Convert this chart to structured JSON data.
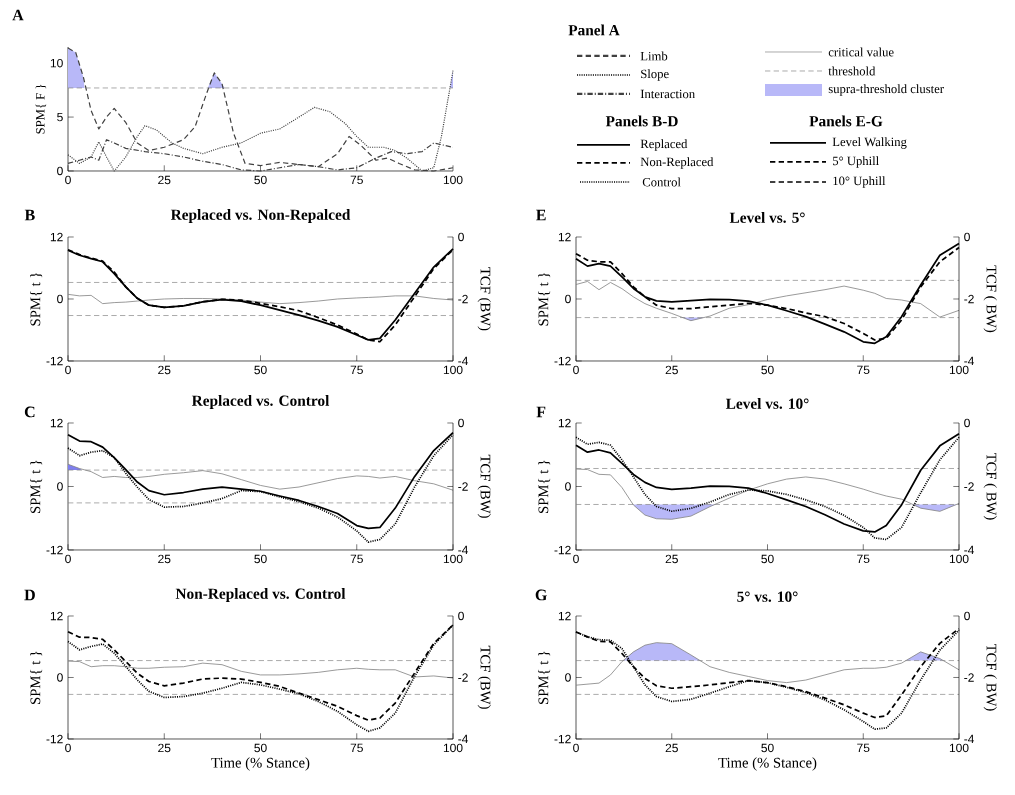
{
  "chart_data": [
    {
      "type": "line",
      "annotations": [
        "A"
      ],
      "ylabel": "SPM{ F }",
      "xlim": [
        0,
        100
      ],
      "xticks": [
        0,
        25,
        50,
        75,
        100
      ],
      "ylim": [
        0,
        11.5
      ],
      "yticks": [
        0,
        5,
        10
      ],
      "ref_lines": [
        {
          "axis": "y",
          "value": 7.7,
          "color": "#808080",
          "line_style": "dashed"
        }
      ],
      "series": [
        {
          "type": "area",
          "color": "#b8b8f8",
          "x": [
            0,
            2,
            4,
            4.3
          ],
          "values": [
            11.4,
            11.0,
            8.7,
            7.7
          ]
        },
        {
          "type": "area",
          "color": "#b8b8f8",
          "x": [
            36.3,
            38,
            40,
            40.6
          ],
          "values": [
            7.7,
            9.1,
            8.1,
            7.7
          ]
        },
        {
          "type": "area",
          "color": "#b8b8f8",
          "x": [
            99.2,
            100
          ],
          "values": [
            7.7,
            9.3
          ]
        },
        {
          "color": "#404040",
          "line_style": "dashed",
          "x": [
            0,
            2,
            4,
            6,
            8,
            10,
            12,
            15,
            18,
            21,
            25,
            30,
            33,
            36,
            38,
            40,
            43,
            46,
            50,
            55,
            60,
            65,
            70,
            73,
            76,
            80,
            83,
            86,
            90,
            95,
            100
          ],
          "values": [
            11.4,
            11.0,
            8.7,
            5.6,
            3.9,
            5.0,
            5.8,
            4.5,
            2.6,
            1.9,
            2.2,
            2.9,
            4.1,
            7.2,
            9.1,
            8.1,
            3.5,
            0.7,
            0.5,
            0.8,
            0.6,
            0.4,
            1.6,
            3.2,
            2.4,
            1.0,
            1.2,
            0.7,
            0.1,
            0,
            0.3
          ]
        },
        {
          "color": "#404040",
          "line_style": "dotted",
          "x": [
            0,
            3,
            6,
            8,
            10,
            12,
            15,
            18,
            20,
            23,
            27,
            30,
            35,
            40,
            45,
            50,
            55,
            60,
            64,
            68,
            72,
            75,
            78,
            82,
            85,
            88,
            92,
            95,
            97,
            100
          ],
          "values": [
            1.5,
            0.7,
            1.3,
            2.7,
            1.3,
            0,
            1.3,
            3.2,
            4.2,
            3.8,
            2.6,
            2.1,
            1.6,
            2.2,
            2.6,
            3.5,
            3.9,
            5.0,
            5.9,
            5.5,
            4.4,
            3.2,
            2.2,
            2.2,
            1.9,
            1.2,
            0,
            0.3,
            3.2,
            9.3
          ]
        },
        {
          "color": "#404040",
          "line_style": "dashdot",
          "x": [
            0,
            3,
            6,
            8,
            10,
            12,
            15,
            20,
            25,
            30,
            35,
            40,
            45,
            50,
            55,
            60,
            65,
            70,
            75,
            80,
            84,
            88,
            92,
            95,
            100
          ],
          "values": [
            0.7,
            1.0,
            1.3,
            1.0,
            2.9,
            2.6,
            2.1,
            1.8,
            1.6,
            1.3,
            0.9,
            0.6,
            0.1,
            0,
            0.3,
            0.6,
            0.4,
            0.1,
            0.3,
            1.2,
            1.8,
            1.6,
            1.8,
            2.6,
            2.2
          ]
        }
      ]
    },
    {
      "type": "other",
      "annotations": [
        "Panel A",
        "Panels B-D",
        "Panels E-G"
      ],
      "series": [
        {
          "name": "Limb",
          "color": "#404040",
          "line_style": "dashed"
        },
        {
          "name": "Slope",
          "color": "#404040",
          "line_style": "dotted"
        },
        {
          "name": "Interaction",
          "color": "#404040",
          "line_style": "dashdot"
        },
        {
          "name": "critical value",
          "color": "#808080",
          "line_style": "solid"
        },
        {
          "name": "threshold",
          "color": "#808080",
          "line_style": "dashed"
        },
        {
          "name": "supra-threshold cluster",
          "color": "#b8b8f8",
          "type": "area"
        },
        {
          "name": "Replaced",
          "color": "#000000",
          "line_style": "solid"
        },
        {
          "name": "Non-Replaced",
          "color": "#000000",
          "line_style": "dashed"
        },
        {
          "name": "Control",
          "color": "#000000",
          "line_style": "dotted"
        },
        {
          "name": "Level Walking",
          "color": "#000000",
          "line_style": "solid"
        },
        {
          "name": "5° Uphill",
          "color": "#000000",
          "line_style": "dashed"
        },
        {
          "name": "10° Uphill",
          "color": "#404040",
          "line_style": "dashed"
        }
      ]
    },
    {
      "type": "line",
      "title": "Replaced vs. Non-Repalced",
      "annotations": [
        "B"
      ],
      "ylabel": "SPM{ t }",
      "y2label": "TCF (BW)",
      "xlim": [
        0,
        100
      ],
      "xticks": [
        0,
        25,
        50,
        75,
        100
      ],
      "ylim": [
        -12,
        12
      ],
      "yticks": [
        -12,
        0,
        12
      ],
      "y2lim": [
        -4,
        0
      ],
      "y2ticks": [
        -4,
        -2,
        0
      ],
      "x": [
        0,
        3,
        6,
        9,
        12,
        15,
        18,
        21,
        25,
        30,
        35,
        40,
        45,
        50,
        55,
        60,
        65,
        70,
        75,
        78,
        81,
        85,
        90,
        95,
        100
      ],
      "ref_lines": [
        {
          "axis": "y",
          "value": 3.2,
          "color": "#808080",
          "line_style": "dashed"
        },
        {
          "axis": "y",
          "value": -3.2,
          "color": "#808080",
          "line_style": "dashed"
        }
      ],
      "series": [
        {
          "color": "#808080",
          "line_style": "solid",
          "values": [
            0.9,
            0.6,
            0.7,
            -0.9,
            -0.7,
            -0.6,
            -0.4,
            -0.2,
            0,
            0.1,
            0.1,
            0,
            -0.2,
            -0.6,
            -0.9,
            -0.7,
            -0.4,
            0,
            0.2,
            0.3,
            0.4,
            0.6,
            0.6,
            0.1,
            -0.2
          ]
        },
        {
          "color": "#000000",
          "line_style": "solid",
          "axis": "y2",
          "values": [
            -0.43,
            -0.59,
            -0.7,
            -0.8,
            -1.18,
            -1.61,
            -1.98,
            -2.2,
            -2.27,
            -2.22,
            -2.09,
            -2.02,
            -2.07,
            -2.2,
            -2.36,
            -2.52,
            -2.7,
            -2.9,
            -3.16,
            -3.32,
            -3.27,
            -2.68,
            -1.82,
            -0.97,
            -0.38
          ]
        },
        {
          "color": "#000000",
          "line_style": "dashed",
          "axis": "y2",
          "values": [
            -0.41,
            -0.57,
            -0.68,
            -0.78,
            -1.13,
            -1.61,
            -1.98,
            -2.2,
            -2.27,
            -2.22,
            -2.09,
            -2.01,
            -2.04,
            -2.14,
            -2.25,
            -2.38,
            -2.6,
            -2.84,
            -3.13,
            -3.32,
            -3.38,
            -2.84,
            -1.93,
            -1.02,
            -0.41
          ]
        }
      ]
    },
    {
      "type": "line",
      "title": "Level vs. 5°",
      "annotations": [
        "E"
      ],
      "ylabel": "SPM{ t }",
      "y2label": "TCF ( BW)",
      "xlim": [
        0,
        100
      ],
      "xticks": [
        0,
        25,
        50,
        75,
        100
      ],
      "ylim": [
        -12,
        12
      ],
      "yticks": [
        -12,
        0,
        12
      ],
      "y2lim": [
        -4,
        0
      ],
      "y2ticks": [
        -4,
        -2,
        0
      ],
      "x": [
        0,
        3,
        6,
        9,
        12,
        15,
        18,
        21,
        25,
        30,
        35,
        40,
        45,
        50,
        55,
        60,
        65,
        70,
        75,
        78,
        81,
        85,
        90,
        95,
        100
      ],
      "ref_lines": [
        {
          "axis": "y",
          "value": 3.6,
          "color": "#808080",
          "line_style": "dashed"
        },
        {
          "axis": "y",
          "value": -3.6,
          "color": "#808080",
          "line_style": "dashed"
        }
      ],
      "series": [
        {
          "type": "area",
          "color": "#b8b8f8",
          "x": [
            27.7,
            30,
            33.6
          ],
          "values": [
            -3.6,
            -4.2,
            -3.6
          ]
        },
        {
          "color": "#808080",
          "line_style": "solid",
          "values": [
            2.8,
            3.4,
            1.8,
            3.2,
            2.0,
            0.4,
            -0.9,
            -1.8,
            -2.8,
            -4.2,
            -3.3,
            -1.8,
            -1.1,
            -0.1,
            0.6,
            1.2,
            1.8,
            2.5,
            1.7,
            1.1,
            0.1,
            -0.2,
            -0.9,
            -3.5,
            -2.2
          ]
        },
        {
          "color": "#000000",
          "line_style": "solid",
          "axis": "y2",
          "values": [
            -0.7,
            -0.94,
            -0.86,
            -0.94,
            -1.29,
            -1.66,
            -1.93,
            -2.06,
            -2.09,
            -2.05,
            -2.01,
            -2.02,
            -2.07,
            -2.2,
            -2.38,
            -2.57,
            -2.81,
            -3.06,
            -3.38,
            -3.43,
            -3.22,
            -2.57,
            -1.55,
            -0.59,
            -0.21
          ]
        },
        {
          "color": "#000000",
          "line_style": "dashed",
          "axis": "y2",
          "values": [
            -0.54,
            -0.75,
            -0.8,
            -0.8,
            -1.18,
            -1.61,
            -1.93,
            -2.2,
            -2.31,
            -2.31,
            -2.25,
            -2.2,
            -2.14,
            -2.2,
            -2.31,
            -2.45,
            -2.57,
            -2.79,
            -3.11,
            -3.32,
            -3.27,
            -2.68,
            -1.61,
            -0.8,
            -0.34
          ]
        }
      ]
    },
    {
      "type": "line",
      "title": "Replaced vs. Control",
      "annotations": [
        "C"
      ],
      "ylabel": "SPM{ t }",
      "y2label": "TCF (BW)",
      "xlim": [
        0,
        100
      ],
      "xticks": [
        0,
        25,
        50,
        75,
        100
      ],
      "ylim": [
        -12,
        12
      ],
      "yticks": [
        -12,
        0,
        12
      ],
      "y2lim": [
        -4,
        0
      ],
      "y2ticks": [
        -4,
        -2,
        0
      ],
      "x": [
        0,
        3,
        6,
        9,
        12,
        15,
        18,
        21,
        25,
        30,
        35,
        40,
        45,
        50,
        55,
        60,
        65,
        70,
        75,
        78,
        81,
        85,
        90,
        95,
        100
      ],
      "ref_lines": [
        {
          "axis": "y",
          "value": 3.1,
          "color": "#808080",
          "line_style": "dashed"
        },
        {
          "axis": "y",
          "value": -3.1,
          "color": "#808080",
          "line_style": "dashed"
        }
      ],
      "series": [
        {
          "type": "area",
          "color": "#7f7ff0",
          "x": [
            0,
            3,
            3.5
          ],
          "values": [
            4.2,
            3.4,
            3.1
          ]
        },
        {
          "color": "#808080",
          "line_style": "solid",
          "values": [
            4.2,
            3.4,
            2.8,
            1.7,
            1.9,
            1.7,
            1.7,
            1.9,
            2.3,
            2.6,
            3.0,
            2.4,
            1.3,
            0.2,
            -0.5,
            -0.1,
            0.7,
            1.5,
            2.0,
            1.9,
            1.6,
            1.9,
            1.1,
            0.5,
            -0.7
          ]
        },
        {
          "color": "#000000",
          "line_style": "solid",
          "axis": "y2",
          "values": [
            -0.37,
            -0.57,
            -0.59,
            -0.76,
            -1.09,
            -1.47,
            -1.86,
            -2.13,
            -2.26,
            -2.19,
            -2.08,
            -2.02,
            -2.08,
            -2.15,
            -2.3,
            -2.44,
            -2.63,
            -2.85,
            -3.23,
            -3.32,
            -3.29,
            -2.68,
            -1.69,
            -0.87,
            -0.3
          ]
        },
        {
          "color": "#000000",
          "line_style": "dotted",
          "axis": "y2",
          "values": [
            -0.79,
            -1.03,
            -0.92,
            -0.87,
            -1.09,
            -1.58,
            -2.02,
            -2.41,
            -2.65,
            -2.63,
            -2.52,
            -2.38,
            -2.13,
            -2.16,
            -2.33,
            -2.48,
            -2.68,
            -2.96,
            -3.4,
            -3.75,
            -3.67,
            -3.18,
            -2.02,
            -1.03,
            -0.37
          ]
        }
      ]
    },
    {
      "type": "line",
      "title": "Level vs. 10°",
      "annotations": [
        "F"
      ],
      "ylabel": "SPM{ t }",
      "y2label": "TCF ( BW)",
      "xlim": [
        0,
        100
      ],
      "xticks": [
        0,
        25,
        50,
        75,
        100
      ],
      "ylim": [
        -12,
        12
      ],
      "yticks": [
        -12,
        0,
        12
      ],
      "y2lim": [
        -4,
        0
      ],
      "y2ticks": [
        -4,
        -2,
        0
      ],
      "x": [
        0,
        3,
        6,
        9,
        12,
        15,
        18,
        21,
        25,
        30,
        35,
        40,
        45,
        50,
        55,
        60,
        65,
        70,
        75,
        78,
        81,
        85,
        90,
        95,
        100
      ],
      "ref_lines": [
        {
          "axis": "y",
          "value": 3.4,
          "color": "#808080",
          "line_style": "dashed"
        },
        {
          "axis": "y",
          "value": -3.4,
          "color": "#808080",
          "line_style": "dashed"
        }
      ],
      "series": [
        {
          "type": "area",
          "color": "#b8b8f8",
          "x": [
            14.9,
            15,
            18,
            21,
            25,
            30,
            35,
            36.4
          ],
          "values": [
            -3.4,
            -3.5,
            -5.4,
            -6.1,
            -6.2,
            -5.6,
            -3.8,
            -3.4
          ]
        },
        {
          "type": "area",
          "color": "#b8b8f8",
          "x": [
            87.8,
            90,
            95,
            99.5
          ],
          "values": [
            -3.4,
            -4.1,
            -4.7,
            -3.4
          ]
        },
        {
          "color": "#808080",
          "line_style": "solid",
          "values": [
            3.3,
            3.2,
            2.3,
            2.2,
            -0.2,
            -3.5,
            -5.4,
            -6.1,
            -6.2,
            -5.6,
            -3.8,
            -2.2,
            -0.7,
            0.5,
            1.4,
            1.8,
            1.4,
            0.5,
            -0.5,
            -1.2,
            -1.8,
            -2.4,
            -4.1,
            -4.7,
            -3.2
          ]
        },
        {
          "color": "#000000",
          "line_style": "solid",
          "axis": "y2",
          "values": [
            -0.7,
            -0.92,
            -0.85,
            -0.94,
            -1.27,
            -1.62,
            -1.87,
            -2.03,
            -2.09,
            -2.05,
            -1.99,
            -2.0,
            -2.05,
            -2.22,
            -2.42,
            -2.63,
            -2.89,
            -3.18,
            -3.4,
            -3.43,
            -3.23,
            -2.58,
            -1.49,
            -0.72,
            -0.34
          ]
        },
        {
          "color": "#000000",
          "line_style": "dotted",
          "axis": "y2",
          "values": [
            -0.45,
            -0.67,
            -0.61,
            -0.7,
            -1.16,
            -1.7,
            -2.25,
            -2.63,
            -2.78,
            -2.69,
            -2.49,
            -2.25,
            -2.11,
            -2.14,
            -2.25,
            -2.42,
            -2.63,
            -2.91,
            -3.29,
            -3.62,
            -3.67,
            -3.29,
            -2.2,
            -1.16,
            -0.45
          ]
        }
      ]
    },
    {
      "type": "line",
      "title": "Non-Replaced vs. Control",
      "annotations": [
        "D"
      ],
      "xlabel": "Time (% Stance)",
      "ylabel": "SPM{ t }",
      "y2label": "TCF (BW)",
      "xlim": [
        0,
        100
      ],
      "xticks": [
        0,
        25,
        50,
        75,
        100
      ],
      "ylim": [
        -12,
        12
      ],
      "yticks": [
        -12,
        0,
        12
      ],
      "y2lim": [
        -4,
        0
      ],
      "y2ticks": [
        -4,
        -2,
        0
      ],
      "x": [
        0,
        3,
        6,
        9,
        12,
        15,
        18,
        21,
        25,
        30,
        35,
        40,
        45,
        50,
        55,
        60,
        65,
        70,
        75,
        78,
        81,
        85,
        90,
        95,
        100
      ],
      "ref_lines": [
        {
          "axis": "y",
          "value": 3.3,
          "color": "#808080",
          "line_style": "dashed"
        },
        {
          "axis": "y",
          "value": -3.3,
          "color": "#808080",
          "line_style": "dashed"
        }
      ],
      "series": [
        {
          "color": "#808080",
          "line_style": "solid",
          "values": [
            3.2,
            3.1,
            2.1,
            2.3,
            2.3,
            2.1,
            1.8,
            1.8,
            2.0,
            2.1,
            2.8,
            2.5,
            1.2,
            0.5,
            0.5,
            0.7,
            1.0,
            1.5,
            1.8,
            1.6,
            1.5,
            1.5,
            0.1,
            0.3,
            -0.1
          ]
        },
        {
          "color": "#000000",
          "line_style": "dashed",
          "axis": "y2",
          "values": [
            -0.51,
            -0.69,
            -0.7,
            -0.76,
            -1.1,
            -1.48,
            -1.86,
            -2.13,
            -2.27,
            -2.18,
            -2.05,
            -2.02,
            -2.05,
            -2.16,
            -2.29,
            -2.51,
            -2.72,
            -2.94,
            -3.24,
            -3.39,
            -3.32,
            -2.83,
            -1.86,
            -0.89,
            -0.29
          ]
        },
        {
          "color": "#000000",
          "line_style": "dotted",
          "axis": "y2",
          "values": [
            -0.83,
            -1.1,
            -0.99,
            -0.91,
            -1.21,
            -1.64,
            -2.08,
            -2.45,
            -2.65,
            -2.62,
            -2.51,
            -2.35,
            -2.16,
            -2.24,
            -2.38,
            -2.53,
            -2.78,
            -3.1,
            -3.54,
            -3.75,
            -3.64,
            -3.16,
            -1.97,
            -0.94,
            -0.29
          ]
        }
      ]
    },
    {
      "type": "line",
      "title": "5° vs. 10°",
      "annotations": [
        "G"
      ],
      "xlabel": "Time (% Stance)",
      "ylabel": "SPM{ t }",
      "y2label": "TCF ( BW)",
      "xlim": [
        0,
        100
      ],
      "xticks": [
        0,
        25,
        50,
        75,
        100
      ],
      "ylim": [
        -12,
        12
      ],
      "yticks": [
        -12,
        0,
        12
      ],
      "y2lim": [
        -4,
        0
      ],
      "y2ticks": [
        -4,
        -2,
        0
      ],
      "x": [
        0,
        3,
        6,
        9,
        12,
        15,
        18,
        21,
        25,
        30,
        35,
        40,
        45,
        50,
        55,
        60,
        65,
        70,
        75,
        78,
        81,
        85,
        90,
        95,
        100
      ],
      "ref_lines": [
        {
          "axis": "y",
          "value": 3.3,
          "color": "#808080",
          "line_style": "dashed"
        },
        {
          "axis": "y",
          "value": -3.3,
          "color": "#808080",
          "line_style": "dashed"
        }
      ],
      "series": [
        {
          "type": "area",
          "color": "#b8b8f8",
          "x": [
            12.4,
            15,
            18,
            21,
            25,
            30,
            32.4
          ],
          "values": [
            3.3,
            5.0,
            6.3,
            6.8,
            6.6,
            4.4,
            3.3
          ]
        },
        {
          "type": "area",
          "color": "#b8b8f8",
          "x": [
            86.2,
            90,
            95,
            95.9
          ],
          "values": [
            3.3,
            5.0,
            3.7,
            3.3
          ]
        },
        {
          "color": "#808080",
          "line_style": "solid",
          "values": [
            -1.5,
            -1.3,
            -1.1,
            0.5,
            3.1,
            5.0,
            6.3,
            6.8,
            6.6,
            4.4,
            2.1,
            1.0,
            0.2,
            -0.6,
            -1.0,
            -0.5,
            0.5,
            1.5,
            1.8,
            1.8,
            2.0,
            2.8,
            5.0,
            3.7,
            1.5
          ]
        },
        {
          "color": "#000000",
          "line_style": "dashed",
          "axis": "y2",
          "values": [
            -0.52,
            -0.68,
            -0.82,
            -0.84,
            -1.22,
            -1.65,
            -2.03,
            -2.27,
            -2.35,
            -2.3,
            -2.24,
            -2.17,
            -2.1,
            -2.17,
            -2.3,
            -2.46,
            -2.67,
            -2.89,
            -3.16,
            -3.3,
            -3.25,
            -2.57,
            -1.65,
            -0.89,
            -0.41
          ]
        },
        {
          "color": "#000000",
          "line_style": "dotted",
          "axis": "y2",
          "values": [
            -0.52,
            -0.68,
            -0.77,
            -0.79,
            -1.06,
            -1.65,
            -2.24,
            -2.62,
            -2.78,
            -2.71,
            -2.51,
            -2.3,
            -2.1,
            -2.17,
            -2.32,
            -2.49,
            -2.73,
            -3.05,
            -3.43,
            -3.68,
            -3.64,
            -3.16,
            -2.08,
            -1.11,
            -0.46
          ]
        }
      ]
    }
  ]
}
